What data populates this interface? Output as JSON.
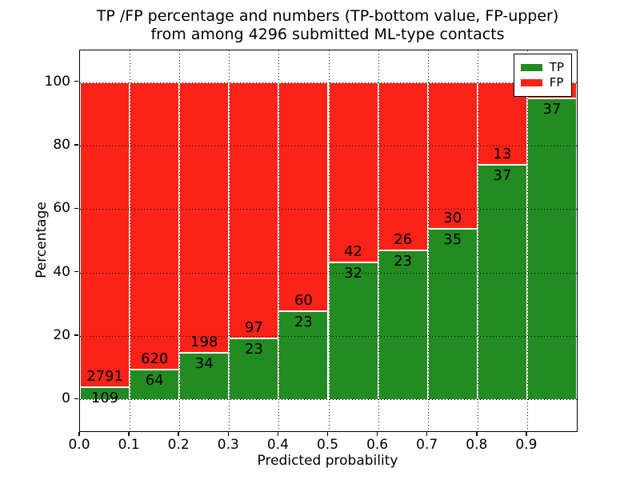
{
  "title": {
    "line1": "TP /FP percentage and numbers (TP-bottom value, FP-upper)",
    "line2": "from among 4296 submitted ML-type contacts"
  },
  "chart_data": {
    "type": "bar",
    "stacked": true,
    "title": "TP /FP percentage and numbers (TP-bottom value, FP-upper)\nfrom among 4296 submitted ML-type contacts",
    "xlabel": "Predicted probability",
    "ylabel": "Percentage",
    "xlim": [
      0.0,
      1.0
    ],
    "ylim": [
      -10,
      110
    ],
    "bin_width": 0.1,
    "xticks": [
      {
        "value": 0.0,
        "label": "0.0"
      },
      {
        "value": 0.1,
        "label": "0.1"
      },
      {
        "value": 0.2,
        "label": "0.2"
      },
      {
        "value": 0.3,
        "label": "0.3"
      },
      {
        "value": 0.4,
        "label": "0.4"
      },
      {
        "value": 0.5,
        "label": "0.5"
      },
      {
        "value": 0.6,
        "label": "0.6"
      },
      {
        "value": 0.7,
        "label": "0.7"
      },
      {
        "value": 0.8,
        "label": "0.8"
      },
      {
        "value": 0.9,
        "label": "0.9"
      }
    ],
    "yticks": [
      {
        "value": 0,
        "label": "0"
      },
      {
        "value": 20,
        "label": "20"
      },
      {
        "value": 40,
        "label": "40"
      },
      {
        "value": 60,
        "label": "60"
      },
      {
        "value": 80,
        "label": "80"
      },
      {
        "value": 100,
        "label": "100"
      }
    ],
    "grid": {
      "style": "dotted",
      "color": "#000000"
    },
    "series": [
      {
        "name": "TP",
        "color": "#228b22"
      },
      {
        "name": "FP",
        "color": "#fb2318"
      }
    ],
    "legend": {
      "position": "upper-right",
      "entries": [
        "TP",
        "FP"
      ]
    },
    "bars": [
      {
        "x_start": 0.0,
        "tp_count_label": "109",
        "fp_count_label": "2791",
        "tp_pct": 3.8
      },
      {
        "x_start": 0.1,
        "tp_count_label": "64",
        "fp_count_label": "620",
        "tp_pct": 9.4
      },
      {
        "x_start": 0.2,
        "tp_count_label": "34",
        "fp_count_label": "198",
        "tp_pct": 14.7
      },
      {
        "x_start": 0.3,
        "tp_count_label": "23",
        "fp_count_label": "97",
        "tp_pct": 19.2
      },
      {
        "x_start": 0.4,
        "tp_count_label": "23",
        "fp_count_label": "60",
        "tp_pct": 27.7
      },
      {
        "x_start": 0.5,
        "tp_count_label": "32",
        "fp_count_label": "42",
        "tp_pct": 43.2
      },
      {
        "x_start": 0.6,
        "tp_count_label": "23",
        "fp_count_label": "26",
        "tp_pct": 46.9
      },
      {
        "x_start": 0.7,
        "tp_count_label": "35",
        "fp_count_label": "30",
        "tp_pct": 53.8
      },
      {
        "x_start": 0.8,
        "tp_count_label": "37",
        "fp_count_label": "13",
        "tp_pct": 74.0
      },
      {
        "x_start": 0.9,
        "tp_count_label": "37",
        "fp_count_label": "",
        "tp_pct": 94.9
      }
    ]
  }
}
